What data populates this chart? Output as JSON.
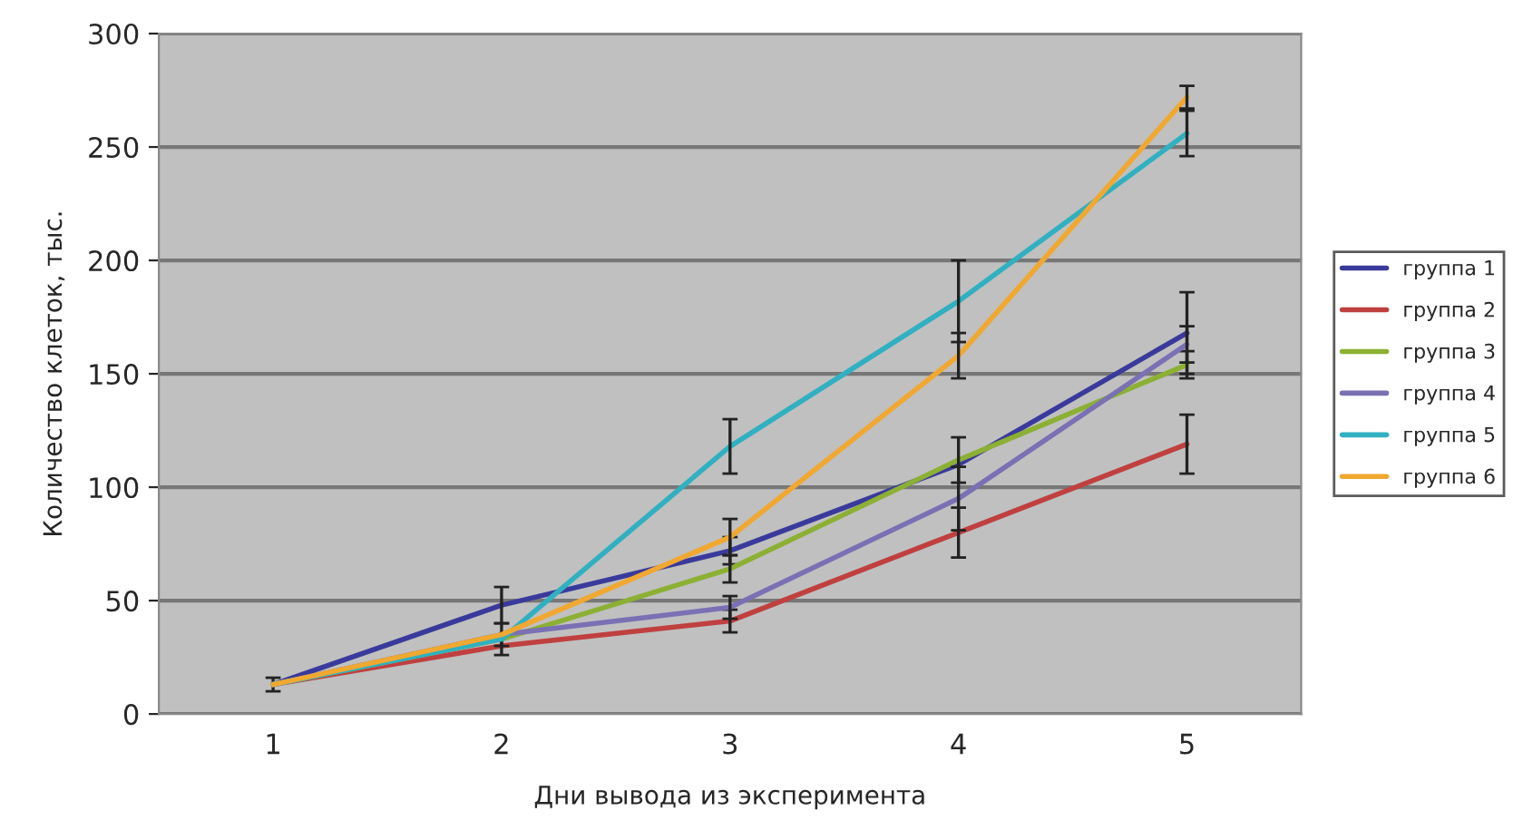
{
  "chart_data": {
    "type": "line",
    "xlabel": "Дни вывода из эксперимента",
    "ylabel": "Количество клеток, тыс.",
    "categories": [
      "1",
      "2",
      "3",
      "4",
      "5"
    ],
    "series": [
      {
        "name": "группа 1",
        "color": "#3a3a9c",
        "values": [
          13,
          48,
          72,
          110,
          168
        ],
        "errors": [
          3,
          8,
          6,
          null,
          18
        ]
      },
      {
        "name": "группа 2",
        "color": "#c04040",
        "values": [
          13,
          30,
          41,
          80,
          119
        ],
        "errors": [
          null,
          4,
          5,
          11,
          13
        ]
      },
      {
        "name": "группа 3",
        "color": "#8cb034",
        "values": [
          13,
          33,
          64,
          112,
          154
        ],
        "errors": [
          null,
          null,
          6,
          10,
          6
        ]
      },
      {
        "name": "группа 4",
        "color": "#7a70b4",
        "values": [
          13,
          35,
          47,
          95,
          163
        ],
        "errors": [
          null,
          5,
          5,
          14,
          8
        ]
      },
      {
        "name": "группа 5",
        "color": "#30b0c0",
        "values": [
          13,
          33,
          118,
          182,
          256
        ],
        "errors": [
          null,
          null,
          12,
          18,
          10
        ]
      },
      {
        "name": "группа 6",
        "color": "#f0a830",
        "values": [
          13,
          35,
          78,
          158,
          272
        ],
        "errors": [
          null,
          null,
          8,
          10,
          5
        ]
      }
    ],
    "ylim": [
      0,
      300
    ],
    "yticks": [
      0,
      50,
      100,
      150,
      200,
      250,
      300
    ],
    "grid": "y",
    "legend": "right"
  }
}
